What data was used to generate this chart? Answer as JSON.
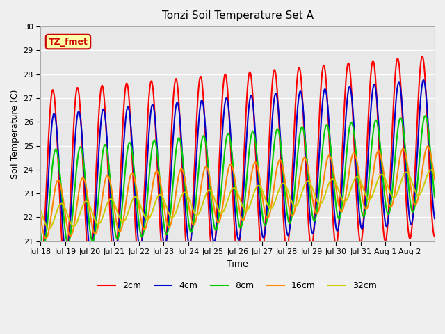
{
  "title": "Tonzi Soil Temperature Set A",
  "xlabel": "Time",
  "ylabel": "Soil Temperature (C)",
  "ylim": [
    21.0,
    30.0
  ],
  "yticks": [
    21.0,
    22.0,
    23.0,
    24.0,
    25.0,
    26.0,
    27.0,
    28.0,
    29.0,
    30.0
  ],
  "label_tag": "TZ_fmet",
  "fig_bg_color": "#f0f0f0",
  "plot_bg": "#e8e8e8",
  "lines": [
    {
      "label": "2cm",
      "color": "#ff0000",
      "lw": 1.5
    },
    {
      "label": "4cm",
      "color": "#0000cc",
      "lw": 1.5
    },
    {
      "label": "8cm",
      "color": "#00cc00",
      "lw": 1.5
    },
    {
      "label": "16cm",
      "color": "#ff8800",
      "lw": 1.5
    },
    {
      "label": "32cm",
      "color": "#cccc00",
      "lw": 1.5
    }
  ],
  "xtick_labels": [
    "Jul 18",
    "Jul 19",
    "Jul 20",
    "Jul 21",
    "Jul 22",
    "Jul 23",
    "Jul 24",
    "Jul 25",
    "Jul 26",
    "Jul 27",
    "Jul 28",
    "Jul 29",
    "Jul 30",
    "Jul 31",
    "Aug 1",
    "Aug 2"
  ],
  "n_days": 16,
  "pts_per_day": 48
}
